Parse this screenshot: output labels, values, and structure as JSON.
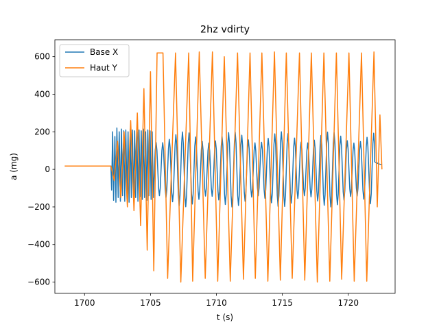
{
  "chart_data": {
    "type": "line",
    "title": "2hz vdirty",
    "xlabel": "t (s)",
    "ylabel": "a (mg)",
    "xlim": [
      1697.75,
      1723.55
    ],
    "ylim": [
      -660,
      690
    ],
    "xticks": [
      1700,
      1705,
      1710,
      1715,
      1720
    ],
    "yticks": [
      -600,
      -400,
      -200,
      0,
      200,
      400,
      600
    ],
    "grid": false,
    "legend_position": "top-left",
    "series": [
      {
        "name": "Base X",
        "color": "#1f77b4",
        "x": [
          1698.5,
          1702.0,
          1702.05,
          1702.13,
          1702.2,
          1702.3,
          1702.38,
          1702.45,
          1702.55,
          1702.63,
          1702.72,
          1702.8,
          1702.88,
          1702.97,
          1703.05,
          1703.13,
          1703.22,
          1703.3,
          1703.38,
          1703.47,
          1703.55,
          1703.63,
          1703.72,
          1703.8,
          1703.88,
          1703.97,
          1704.05,
          1704.13,
          1704.22,
          1704.3,
          1704.38,
          1704.47,
          1704.55,
          1704.63,
          1704.72,
          1704.8,
          1704.88,
          1704.97,
          1705.05,
          1705.13,
          1705.22,
          1705.3
        ],
        "values": [
          18,
          18,
          -110,
          200,
          -165,
          175,
          -175,
          220,
          -150,
          200,
          -170,
          215,
          -140,
          205,
          -170,
          210,
          -160,
          200,
          -175,
          215,
          -150,
          210,
          -165,
          205,
          -150,
          200,
          -170,
          210,
          -145,
          205,
          -160,
          215,
          -150,
          200,
          -165,
          210,
          -140,
          205,
          -160,
          200,
          -150,
          0
        ],
        "oscillation": {
          "x_start": 1705.3,
          "x_end": 1722.0,
          "amplitude": 200,
          "period": 0.5
        },
        "tail": {
          "x": [
            1722.0,
            1722.3,
            1722.5
          ],
          "values": [
            40,
            30,
            25
          ]
        }
      },
      {
        "name": "Haut Y",
        "color": "#ff7f0e",
        "x": [
          1698.5,
          1702.0,
          1702.25,
          1702.5,
          1702.75,
          1703.0,
          1703.25,
          1703.5,
          1703.75,
          1704.0,
          1704.25,
          1704.5,
          1704.75,
          1705.0,
          1705.25,
          1705.5
        ],
        "values": [
          18,
          18,
          -60,
          150,
          -150,
          200,
          -200,
          260,
          -220,
          300,
          -300,
          430,
          -430,
          520,
          -540,
          620
        ],
        "oscillation_peaks": [
          [
            1705.95,
            620
          ],
          [
            1706.3,
            -580
          ],
          [
            1706.9,
            620
          ],
          [
            1707.3,
            -600
          ],
          [
            1707.9,
            620
          ],
          [
            1708.2,
            -595
          ],
          [
            1708.7,
            625
          ],
          [
            1709.15,
            -580
          ],
          [
            1709.7,
            625
          ],
          [
            1710.1,
            -595
          ],
          [
            1710.6,
            600
          ],
          [
            1711.05,
            -595
          ],
          [
            1711.6,
            620
          ],
          [
            1712.05,
            -585
          ],
          [
            1712.55,
            620
          ],
          [
            1712.95,
            -580
          ],
          [
            1713.45,
            620
          ],
          [
            1713.9,
            -595
          ],
          [
            1714.4,
            625
          ],
          [
            1714.85,
            -590
          ],
          [
            1715.3,
            620
          ],
          [
            1715.75,
            -580
          ],
          [
            1716.3,
            620
          ],
          [
            1716.7,
            -590
          ],
          [
            1717.2,
            620
          ],
          [
            1717.65,
            -600
          ],
          [
            1718.15,
            620
          ],
          [
            1718.6,
            -595
          ],
          [
            1719.1,
            620
          ],
          [
            1719.5,
            -585
          ],
          [
            1720.05,
            620
          ],
          [
            1720.45,
            -595
          ],
          [
            1721.0,
            620
          ],
          [
            1721.4,
            -595
          ],
          [
            1721.95,
            625
          ],
          [
            1722.2,
            -200
          ],
          [
            1722.4,
            290
          ],
          [
            1722.55,
            0
          ]
        ]
      }
    ]
  }
}
